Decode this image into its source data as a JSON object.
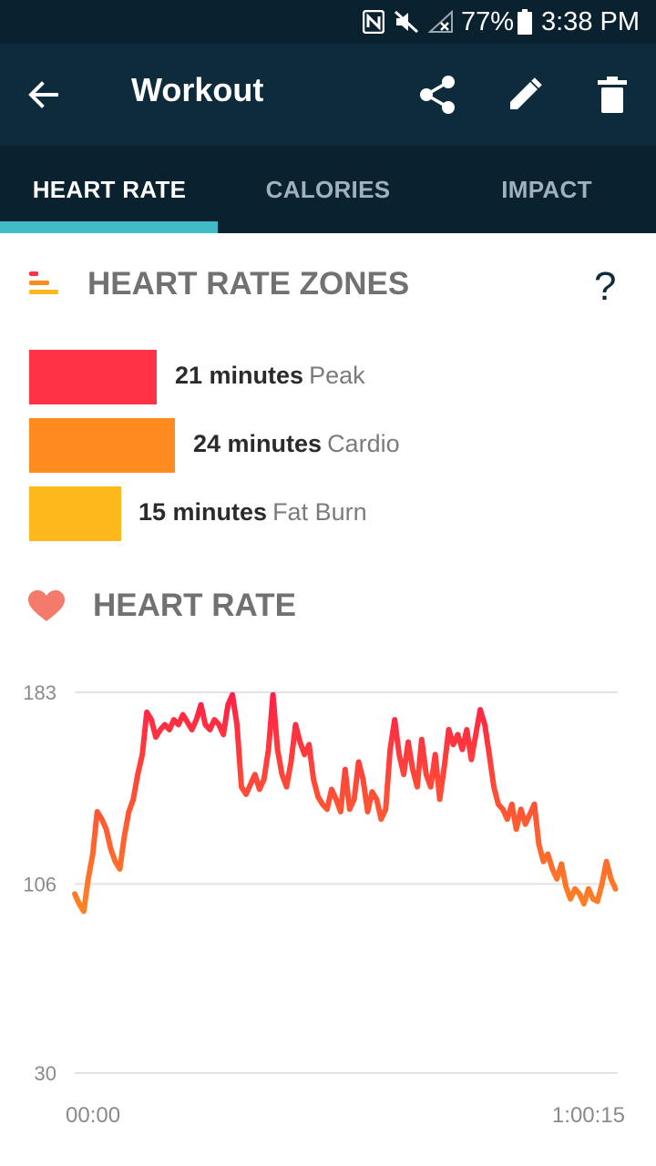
{
  "status_bar": {
    "icons": [
      "nfc-icon",
      "mute-icon",
      "signal-icon",
      "battery-icon"
    ],
    "battery": "77%",
    "time": "3:38 PM"
  },
  "app_bar": {
    "title": "Workout",
    "icons": [
      "back-arrow-icon",
      "share-icon",
      "pencil-icon",
      "trash-icon"
    ]
  },
  "tabs": [
    {
      "label": "HEART RATE",
      "active": true
    },
    {
      "label": "CALORIES",
      "active": false
    },
    {
      "label": "IMPACT",
      "active": false
    }
  ],
  "zones": {
    "title": "HEART RATE ZONES",
    "help": "?",
    "items": [
      {
        "minutes": "21 minutes",
        "name": "Peak",
        "color": "#ff3246"
      },
      {
        "minutes": "24 minutes",
        "name": "Cardio",
        "color": "#ff8a1f"
      },
      {
        "minutes": "15 minutes",
        "name": "Fat Burn",
        "color": "#ffb81c"
      }
    ]
  },
  "heart_rate": {
    "title": "HEART RATE"
  },
  "chart_data": {
    "type": "line",
    "y_ticks": [
      "183",
      "106",
      "30"
    ],
    "ylim": [
      30,
      183
    ],
    "x_tick_labels": [
      "00:00",
      "1:00:15"
    ],
    "xlim": [
      0,
      60.25
    ],
    "grid": true,
    "colors": {
      "high": "#ff1f47",
      "low": "#ff8f1f"
    },
    "series": [
      {
        "x": [
          0,
          0.5,
          1,
          1.5,
          2,
          2.5,
          3,
          3.5,
          4,
          4.5,
          5,
          5.5,
          6,
          6.5,
          7,
          7.5,
          8,
          8.5,
          9,
          9.5,
          10,
          10.5,
          11,
          11.5,
          12,
          12.5,
          13,
          13.5,
          14,
          14.5,
          15,
          15.5,
          16,
          16.5,
          17,
          17.5,
          18,
          18.5,
          19,
          19.5,
          20,
          20.5,
          21,
          21.5,
          22,
          22.5,
          23,
          23.5,
          24,
          24.5,
          25,
          25.5,
          26,
          26.5,
          27,
          27.5,
          28,
          28.5,
          29,
          29.5,
          30,
          30.5,
          31,
          31.5,
          32,
          32.5,
          33,
          33.5,
          34,
          34.5,
          35,
          35.5,
          36,
          36.5,
          37,
          37.5,
          38,
          38.5,
          39,
          39.5,
          40,
          40.5,
          41,
          41.5,
          42,
          42.5,
          43,
          43.5,
          44,
          44.5,
          45,
          45.5,
          46,
          46.5,
          47,
          47.5,
          48,
          48.5,
          49,
          49.5,
          50,
          50.5,
          51,
          51.5,
          52,
          52.5,
          53,
          53.5,
          54,
          54.5,
          55,
          55.5,
          56,
          56.5,
          57,
          57.5,
          58,
          58.5,
          59,
          59.5,
          60
        ],
        "y": [
          102,
          98,
          95,
          108,
          118,
          135,
          132,
          128,
          120,
          115,
          112,
          125,
          135,
          140,
          150,
          158,
          175,
          172,
          165,
          168,
          170,
          168,
          172,
          170,
          174,
          171,
          168,
          172,
          178,
          170,
          168,
          172,
          170,
          166,
          178,
          182,
          170,
          145,
          142,
          146,
          150,
          144,
          148,
          160,
          182,
          160,
          150,
          145,
          155,
          170,
          163,
          158,
          162,
          148,
          141,
          138,
          136,
          144,
          140,
          135,
          152,
          136,
          140,
          155,
          148,
          135,
          143,
          140,
          132,
          136,
          160,
          172,
          158,
          150,
          163,
          152,
          145,
          164,
          150,
          145,
          158,
          140,
          153,
          168,
          162,
          166,
          160,
          168,
          156,
          166,
          176,
          170,
          158,
          145,
          138,
          136,
          132,
          138,
          128,
          136,
          130,
          134,
          138,
          122,
          115,
          118,
          112,
          108,
          114,
          105,
          100,
          104,
          102,
          98,
          104,
          100,
          99,
          106,
          115,
          108,
          104
        ]
      }
    ]
  }
}
